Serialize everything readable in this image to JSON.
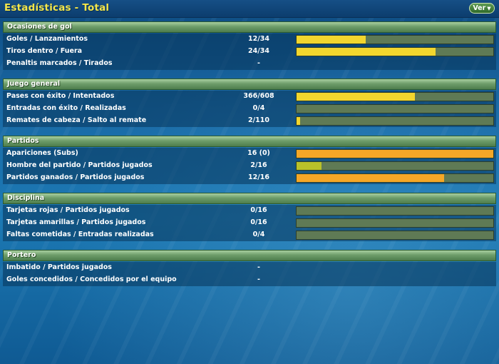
{
  "title": "Estadísticas - Total",
  "ver_button": {
    "label": "Ver",
    "caret": "▼"
  },
  "colors": {
    "bar_yellow": "#f2d62e",
    "bar_orange": "#f5a727",
    "bar_olive": "#b9c12a",
    "bar_track": "#5f7a55"
  },
  "sections": [
    {
      "title": "Ocasiones de gol",
      "rows": [
        {
          "label": "Goles / Lanzamientos",
          "value": "12/34",
          "bar": 0.353,
          "color": "#f2d62e"
        },
        {
          "label": "Tiros dentro / Fuera",
          "value": "24/34",
          "bar": 0.706,
          "color": "#f2d62e"
        },
        {
          "label": "Penaltis marcados / Tirados",
          "value": "-",
          "bar": null,
          "color": null
        }
      ]
    },
    {
      "title": "Juego general",
      "rows": [
        {
          "label": "Pases con éxito / Intentados",
          "value": "366/608",
          "bar": 0.602,
          "color": "#f2d62e"
        },
        {
          "label": "Entradas con éxito / Realizadas",
          "value": "0/4",
          "bar": 0.0,
          "color": "#f2d62e"
        },
        {
          "label": "Remates de cabeza / Salto al remate",
          "value": "2/110",
          "bar": 0.018,
          "color": "#f2d62e"
        }
      ]
    },
    {
      "title": "Partidos",
      "rows": [
        {
          "label": "Apariciones (Subs)",
          "value": "16 (0)",
          "bar": 1.0,
          "color": "#f5a727"
        },
        {
          "label": "Hombre del partido / Partidos jugados",
          "value": "2/16",
          "bar": 0.125,
          "color": "#b9c12a"
        },
        {
          "label": "Partidos ganados / Partidos jugados",
          "value": "12/16",
          "bar": 0.75,
          "color": "#f5a727"
        }
      ]
    },
    {
      "title": "Disciplina",
      "rows": [
        {
          "label": "Tarjetas rojas / Partidos jugados",
          "value": "0/16",
          "bar": 0.0,
          "color": "#f2d62e"
        },
        {
          "label": "Tarjetas amarillas / Partidos jugados",
          "value": "0/16",
          "bar": 0.0,
          "color": "#f2d62e"
        },
        {
          "label": "Faltas cometidas / Entradas realizadas",
          "value": "0/4",
          "bar": 0.0,
          "color": "#f2d62e"
        }
      ]
    },
    {
      "title": "Portero",
      "rows": [
        {
          "label": "Imbatido / Partidos jugados",
          "value": "-",
          "bar": null,
          "color": null
        },
        {
          "label": "Goles concedidos / Concedidos por el equipo",
          "value": "-",
          "bar": null,
          "color": null
        }
      ]
    }
  ]
}
